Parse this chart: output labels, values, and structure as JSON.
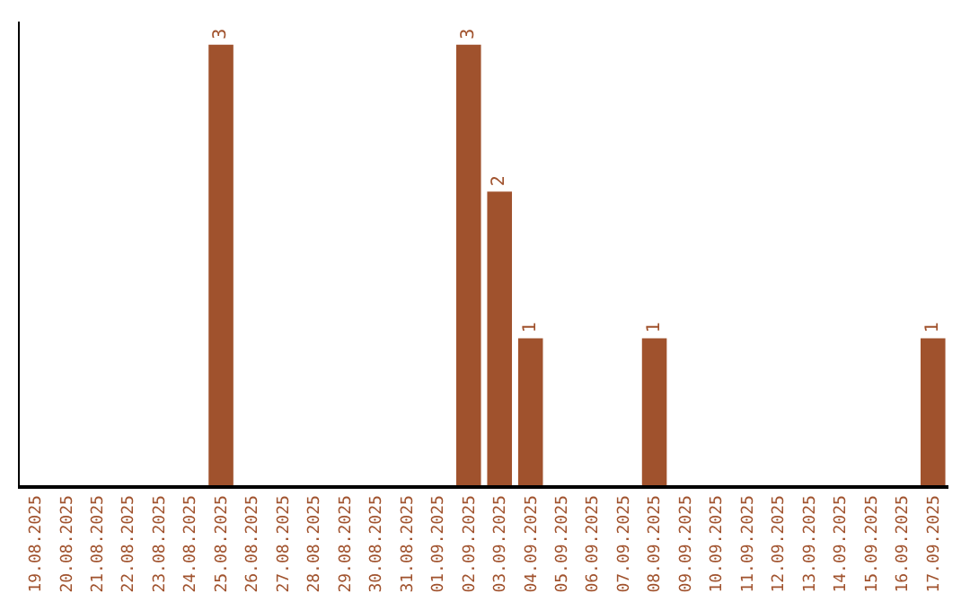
{
  "chart_data": {
    "type": "bar",
    "categories": [
      "19.08.2025",
      "20.08.2025",
      "21.08.2025",
      "22.08.2025",
      "23.08.2025",
      "24.08.2025",
      "25.08.2025",
      "26.08.2025",
      "27.08.2025",
      "28.08.2025",
      "29.08.2025",
      "30.08.2025",
      "31.08.2025",
      "01.09.2025",
      "02.09.2025",
      "03.09.2025",
      "04.09.2025",
      "05.09.2025",
      "06.09.2025",
      "07.09.2025",
      "08.09.2025",
      "09.09.2025",
      "10.09.2025",
      "11.09.2025",
      "12.09.2025",
      "13.09.2025",
      "14.09.2025",
      "15.09.2025",
      "16.09.2025",
      "17.09.2025"
    ],
    "values": [
      0,
      0,
      0,
      0,
      0,
      0,
      3,
      0,
      0,
      0,
      0,
      0,
      0,
      0,
      3,
      2,
      1,
      0,
      0,
      0,
      1,
      0,
      0,
      0,
      0,
      0,
      0,
      0,
      0,
      1
    ],
    "value_labels": [
      null,
      null,
      null,
      null,
      null,
      null,
      "3",
      null,
      null,
      null,
      null,
      null,
      null,
      null,
      "3",
      "2",
      "1",
      null,
      null,
      null,
      "1",
      null,
      null,
      null,
      null,
      null,
      null,
      null,
      null,
      "1"
    ],
    "color": "#a0522d",
    "tick_labels": "x"
  }
}
